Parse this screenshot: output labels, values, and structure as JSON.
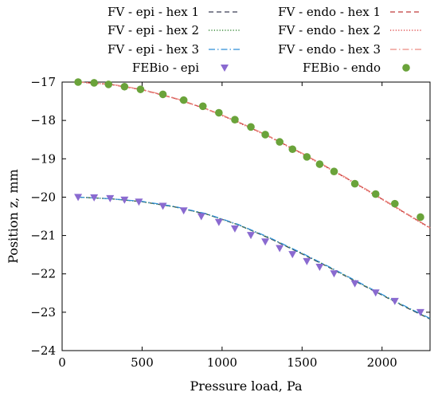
{
  "chart_data": {
    "type": "line",
    "title": "",
    "xlabel": "Pressure load, Pa",
    "ylabel": "Position z, mm",
    "xlim": [
      0,
      2300
    ],
    "ylim": [
      -24,
      -17
    ],
    "xticks": [
      0,
      500,
      1000,
      1500,
      2000
    ],
    "yticks": [
      -24,
      -23,
      -22,
      -21,
      -20,
      -19,
      -18,
      -17
    ],
    "grid": false,
    "legend": "top",
    "series": [
      {
        "name": "FV - epi - hex 1",
        "style": "dashed-dark",
        "color": "#3a3f55",
        "x": [
          100,
          300,
          500,
          700,
          900,
          1100,
          1300,
          1500,
          1700,
          1900,
          2100,
          2300
        ],
        "y": [
          -20.0,
          -20.04,
          -20.12,
          -20.25,
          -20.44,
          -20.72,
          -21.08,
          -21.48,
          -21.9,
          -22.34,
          -22.77,
          -23.18
        ]
      },
      {
        "name": "FV - epi - hex 2",
        "style": "dotted-green",
        "color": "#3a8a3a",
        "x": [
          100,
          300,
          500,
          700,
          900,
          1100,
          1300,
          1500,
          1700,
          1900,
          2100,
          2300
        ],
        "y": [
          -20.0,
          -20.04,
          -20.12,
          -20.25,
          -20.44,
          -20.72,
          -21.07,
          -21.47,
          -21.89,
          -22.33,
          -22.76,
          -23.17
        ]
      },
      {
        "name": "FV - epi - hex 3",
        "style": "dashdot-blue",
        "color": "#2f8fd8",
        "x": [
          100,
          300,
          500,
          700,
          900,
          1100,
          1300,
          1500,
          1700,
          1900,
          2100,
          2300
        ],
        "y": [
          -20.0,
          -20.04,
          -20.11,
          -20.24,
          -20.43,
          -20.71,
          -21.06,
          -21.46,
          -21.88,
          -22.32,
          -22.75,
          -23.16
        ]
      },
      {
        "name": "FEBio - epi",
        "style": "triangle-marker",
        "color": "#8a6ad0",
        "x": [
          100,
          200,
          300,
          390,
          480,
          630,
          760,
          870,
          980,
          1080,
          1180,
          1270,
          1360,
          1440,
          1530,
          1610,
          1700,
          1830,
          1960,
          2080,
          2240
        ],
        "y": [
          -20.0,
          -20.01,
          -20.03,
          -20.07,
          -20.12,
          -20.23,
          -20.35,
          -20.5,
          -20.65,
          -20.82,
          -20.99,
          -21.16,
          -21.33,
          -21.49,
          -21.67,
          -21.82,
          -21.99,
          -22.25,
          -22.49,
          -22.71,
          -23.0
        ]
      },
      {
        "name": "FV - endo - hex 1",
        "style": "dashed-red",
        "color": "#c03a3a",
        "x": [
          100,
          300,
          500,
          700,
          900,
          1100,
          1300,
          1500,
          1700,
          1900,
          2100,
          2300
        ],
        "y": [
          -17.0,
          -17.06,
          -17.2,
          -17.42,
          -17.7,
          -18.04,
          -18.43,
          -18.86,
          -19.32,
          -19.8,
          -20.3,
          -20.8
        ]
      },
      {
        "name": "FV - endo - hex 2",
        "style": "dotted-red",
        "color": "#e05050",
        "x": [
          100,
          300,
          500,
          700,
          900,
          1100,
          1300,
          1500,
          1700,
          1900,
          2100,
          2300
        ],
        "y": [
          -17.0,
          -17.06,
          -17.2,
          -17.42,
          -17.7,
          -18.05,
          -18.44,
          -18.87,
          -19.33,
          -19.81,
          -20.31,
          -20.81
        ]
      },
      {
        "name": "FV - endo - hex 3",
        "style": "dashdot-salmon",
        "color": "#ec8a80",
        "x": [
          100,
          300,
          500,
          700,
          900,
          1100,
          1300,
          1500,
          1700,
          1900,
          2100,
          2300
        ],
        "y": [
          -17.0,
          -17.05,
          -17.19,
          -17.41,
          -17.69,
          -18.03,
          -18.42,
          -18.85,
          -19.31,
          -19.79,
          -20.29,
          -20.79
        ]
      },
      {
        "name": "FEBio - endo",
        "style": "circle-marker",
        "color": "#6aa33a",
        "x": [
          100,
          200,
          290,
          390,
          490,
          630,
          760,
          880,
          980,
          1080,
          1180,
          1270,
          1360,
          1440,
          1530,
          1610,
          1700,
          1830,
          1960,
          2080,
          2240
        ],
        "y": [
          -17.0,
          -17.02,
          -17.06,
          -17.12,
          -17.19,
          -17.32,
          -17.47,
          -17.63,
          -17.8,
          -17.98,
          -18.17,
          -18.37,
          -18.56,
          -18.75,
          -18.95,
          -19.14,
          -19.33,
          -19.65,
          -19.92,
          -20.17,
          -20.52
        ]
      }
    ]
  }
}
